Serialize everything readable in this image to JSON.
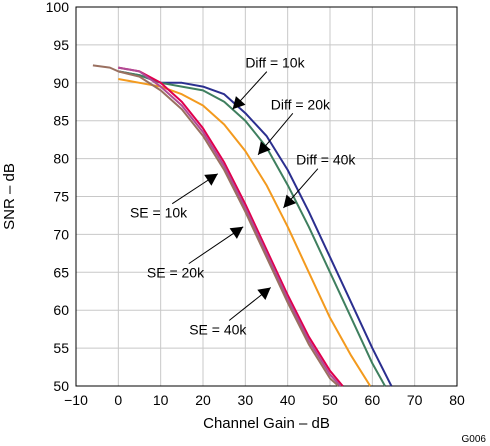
{
  "chart_data": {
    "type": "line",
    "xlabel": "Channel Gain – dB",
    "ylabel": "SNR – dB",
    "xlim": [
      -10,
      80
    ],
    "ylim": [
      50,
      100
    ],
    "x_ticks": [
      "−10",
      "0",
      "10",
      "20",
      "30",
      "40",
      "50",
      "60",
      "70",
      "80"
    ],
    "y_ticks": [
      "50",
      "55",
      "60",
      "65",
      "70",
      "75",
      "80",
      "85",
      "90",
      "95",
      "100"
    ],
    "grid": true,
    "figure_id": "G006",
    "series": [
      {
        "name": "Diff = 10k",
        "color": "#2b2f8f",
        "x": [
          0,
          5,
          10,
          15,
          20,
          25,
          30,
          35,
          40,
          45,
          50,
          55,
          60,
          64.5
        ],
        "y": [
          91.5,
          91,
          90,
          90,
          89.5,
          88.5,
          86,
          83,
          78.5,
          73,
          67,
          61,
          55,
          50
        ]
      },
      {
        "name": "Diff = 20k",
        "color": "#3f7f5f",
        "x": [
          0,
          5,
          10,
          15,
          20,
          25,
          30,
          35,
          40,
          45,
          50,
          55,
          60,
          63
        ],
        "y": [
          91.5,
          91,
          90,
          89.5,
          89,
          87.5,
          85,
          81.5,
          76.5,
          71,
          65,
          59,
          53,
          50
        ]
      },
      {
        "name": "Diff = 40k",
        "color": "#f39a1e",
        "x": [
          0,
          5,
          10,
          15,
          20,
          25,
          30,
          35,
          40,
          45,
          50,
          55,
          59.5
        ],
        "y": [
          90.5,
          90,
          89.5,
          88.5,
          87,
          84.5,
          81,
          76.5,
          71,
          65,
          59,
          54,
          50
        ]
      },
      {
        "name": "SE = 10k",
        "color": "#e0004d",
        "x": [
          0,
          5,
          10,
          15,
          20,
          25,
          30,
          35,
          40,
          45,
          50,
          53
        ],
        "y": [
          92,
          91.5,
          90,
          87.5,
          84,
          79.5,
          74,
          68,
          62,
          56.5,
          52,
          50
        ]
      },
      {
        "name": "SE = 20k",
        "color": "#b04a96",
        "x": [
          0,
          5,
          10,
          15,
          20,
          25,
          30,
          35,
          40,
          45,
          50,
          52.5
        ],
        "y": [
          92,
          91.5,
          89.5,
          87,
          83.5,
          79,
          73.5,
          67.5,
          61.5,
          56,
          51.5,
          50
        ]
      },
      {
        "name": "SE = 40k",
        "color": "#9a7060",
        "x": [
          -6,
          -2,
          0,
          5,
          10,
          15,
          20,
          25,
          30,
          35,
          40,
          45,
          50,
          52
        ],
        "y": [
          92.3,
          92,
          91.5,
          90.8,
          89,
          86.5,
          83,
          78.5,
          73,
          67,
          61,
          55.5,
          51,
          50
        ]
      }
    ],
    "annotations": [
      {
        "text": "Diff = 10k",
        "text_at": [
          37,
          92
        ],
        "arrow_tip": [
          27,
          86.5
        ]
      },
      {
        "text": "Diff = 20k",
        "text_at": [
          43,
          86.5
        ],
        "arrow_tip": [
          33,
          80.5
        ]
      },
      {
        "text": "Diff = 40k",
        "text_at": [
          49,
          79.2
        ],
        "arrow_tip": [
          39,
          73.5
        ]
      },
      {
        "text": "SE = 10k",
        "text_at": [
          9.5,
          72.2
        ],
        "arrow_tip": [
          23.5,
          78
        ]
      },
      {
        "text": "SE = 20k",
        "text_at": [
          13.5,
          64.3
        ],
        "arrow_tip": [
          29.5,
          71
        ]
      },
      {
        "text": "SE = 40k",
        "text_at": [
          23.5,
          56.8
        ],
        "arrow_tip": [
          36,
          63
        ]
      }
    ]
  }
}
